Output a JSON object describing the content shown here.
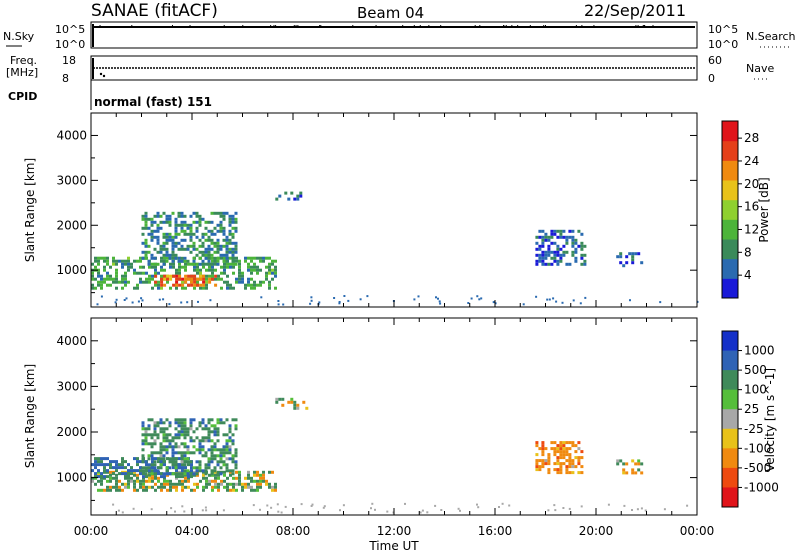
{
  "header": {
    "title": "SANAE (fitACF)",
    "beam": "Beam 04",
    "date": "22/Sep/2011"
  },
  "strips": {
    "nsky": {
      "label": "N.Sky",
      "ticks": [
        "10^5",
        "10^0"
      ],
      "right_label": "N.Search",
      "right_ticks": [
        "10^5",
        "10^0"
      ]
    },
    "freq": {
      "label_line1": "Freq.",
      "label_line2": "[MHz]",
      "ticks": [
        "18",
        "8"
      ],
      "right_label": "Nave",
      "right_ticks": [
        "60",
        "0"
      ]
    },
    "cpid": {
      "label": "CPID",
      "value": "normal (fast) 151"
    }
  },
  "colors": {
    "power": [
      "#1a1ad8",
      "#2a6ab0",
      "#3a8a5a",
      "#4cb43a",
      "#8fd02f",
      "#e8c21a",
      "#f08a10",
      "#e5401a",
      "#e0141a"
    ],
    "velocity": [
      "#1430c8",
      "#2f63b5",
      "#3f8a5a",
      "#55be3a",
      "#a8a8a8",
      "#e8c21a",
      "#f08a10",
      "#ee4a10",
      "#e0141a"
    ]
  },
  "chart_data": [
    {
      "type": "heatmap",
      "panel": "power",
      "xlabel": "",
      "ylabel": "Slant Range [km]",
      "xlim_hours": [
        0,
        24
      ],
      "ylim": [
        180,
        4500
      ],
      "y_ticks": [
        1000,
        2000,
        3000,
        4000
      ],
      "colorbar": {
        "label": "Power [dB]",
        "range": [
          0,
          31
        ],
        "ticks": [
          4,
          8,
          12,
          16,
          20,
          24,
          28
        ]
      },
      "features": [
        {
          "name": "main-echo-band",
          "t_start": 0.0,
          "t_end": 7.3,
          "range_start": 600,
          "range_end": 1300,
          "value": 10
        },
        {
          "name": "strong-core",
          "t_start": 2.5,
          "t_end": 5.0,
          "range_start": 650,
          "range_end": 900,
          "value": 24
        },
        {
          "name": "rising-arc",
          "t_start": 2.0,
          "t_end": 5.8,
          "range_start": 1100,
          "range_end": 2300,
          "value": 8
        },
        {
          "name": "patch-0800",
          "t_start": 7.3,
          "t_end": 8.6,
          "range_start": 2550,
          "range_end": 2750,
          "value": 6
        },
        {
          "name": "patch-1830",
          "t_start": 17.6,
          "t_end": 19.6,
          "range_start": 1100,
          "range_end": 1900,
          "value": 5
        },
        {
          "name": "patch-2100",
          "t_start": 20.8,
          "t_end": 21.8,
          "range_start": 1100,
          "range_end": 1400,
          "value": 5
        }
      ]
    },
    {
      "type": "heatmap",
      "panel": "velocity",
      "xlabel": "Time UT",
      "ylabel": "Slant Range [km]",
      "xlim_hours": [
        0,
        24
      ],
      "x_ticks": [
        "00:00",
        "04:00",
        "08:00",
        "12:00",
        "16:00",
        "20:00",
        "00:00"
      ],
      "ylim": [
        180,
        4500
      ],
      "y_ticks": [
        1000,
        2000,
        3000,
        4000
      ],
      "colorbar": {
        "label": "Velocity [m s^-1]",
        "ticks": [
          "1000",
          "500",
          "100",
          "25",
          "-25",
          "-100",
          "-500",
          "-1000"
        ]
      },
      "features": [
        {
          "name": "main-echo-band",
          "t_start": 0.0,
          "t_end": 7.3,
          "range_start": 750,
          "range_end": 1150,
          "value": 100
        },
        {
          "name": "upper-band",
          "t_start": 0.0,
          "t_end": 4.0,
          "range_start": 1000,
          "range_end": 1450,
          "value": 500
        },
        {
          "name": "rising-arc",
          "t_start": 2.0,
          "t_end": 5.8,
          "range_start": 1100,
          "range_end": 2300,
          "value": 300
        },
        {
          "name": "patch-0800",
          "t_start": 7.3,
          "t_end": 8.6,
          "range_start": 2550,
          "range_end": 2750,
          "value": 0
        },
        {
          "name": "patch-1830",
          "t_start": 17.6,
          "t_end": 19.4,
          "range_start": 1100,
          "range_end": 1800,
          "value": -300
        },
        {
          "name": "patch-2100",
          "t_start": 20.8,
          "t_end": 21.8,
          "range_start": 1100,
          "range_end": 1400,
          "value": -50
        }
      ]
    }
  ]
}
